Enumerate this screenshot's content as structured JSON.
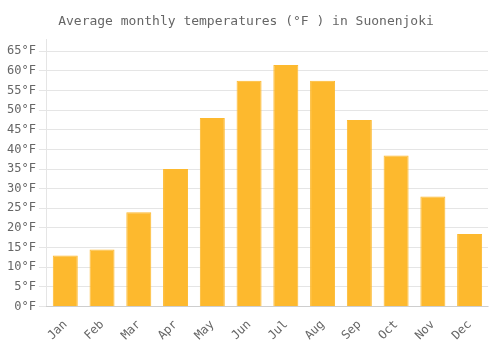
{
  "chart_data": {
    "type": "bar",
    "title": "Average monthly temperatures (°F ) in Suonenjoki",
    "categories": [
      "Jan",
      "Feb",
      "Mar",
      "Apr",
      "May",
      "Jun",
      "Jul",
      "Aug",
      "Sep",
      "Oct",
      "Nov",
      "Dec"
    ],
    "values": [
      13,
      14.5,
      24,
      35,
      48,
      57.5,
      61.5,
      57.5,
      47.5,
      38.5,
      28,
      18.5
    ],
    "color": "#FDB92E",
    "ylim": [
      0,
      68
    ],
    "yticks": [
      {
        "value": 0,
        "label": "0°F"
      },
      {
        "value": 5,
        "label": "5°F"
      },
      {
        "value": 10,
        "label": "10°F"
      },
      {
        "value": 15,
        "label": "15°F"
      },
      {
        "value": 20,
        "label": "20°F"
      },
      {
        "value": 25,
        "label": "25°F"
      },
      {
        "value": 30,
        "label": "30°F"
      },
      {
        "value": 35,
        "label": "35°F"
      },
      {
        "value": 40,
        "label": "40°F"
      },
      {
        "value": 45,
        "label": "45°F"
      },
      {
        "value": 50,
        "label": "50°F"
      },
      {
        "value": 55,
        "label": "55°F"
      },
      {
        "value": 60,
        "label": "60°F"
      },
      {
        "value": 65,
        "label": "65°F"
      }
    ],
    "grid": true
  }
}
